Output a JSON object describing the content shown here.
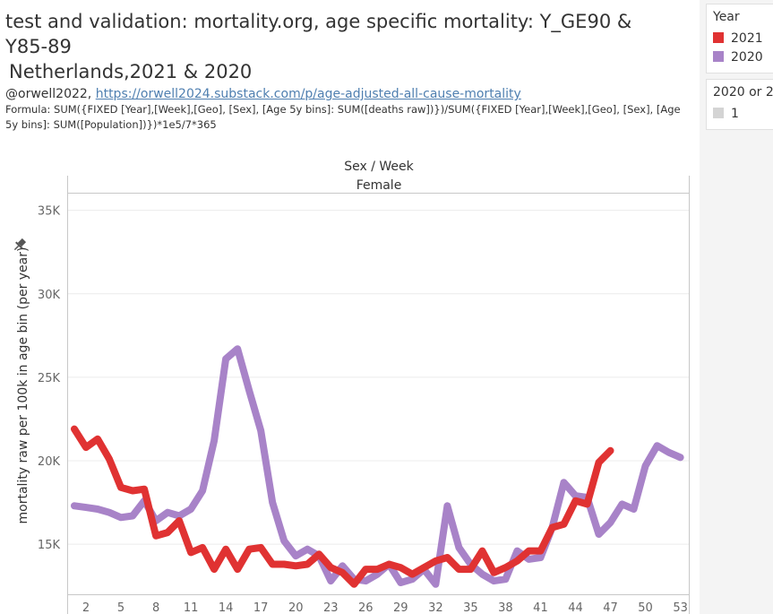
{
  "title_lines": [
    "test and validation: mortality.org, age specific mortality: Y_GE90 &",
    "Y85-89",
    " Netherlands,2021 & 2020"
  ],
  "author": "@orwell2022, ",
  "link_text": "https://orwell2024.substack.com/p/age-adjusted-all-cause-mortality",
  "formula": "Formula: SUM({FIXED [Year],[Week],[Geo], [Sex], [Age 5y bins]: SUM([deaths raw])})/SUM({FIXED [Year],[Week],[Geo], [Sex], [Age 5y bins]: SUM([Population])})*1e5/7*365",
  "legend_year": {
    "title": "Year",
    "items": [
      {
        "label": "2021",
        "color": "#e03232"
      },
      {
        "label": "2020",
        "color": "#a883c8"
      }
    ]
  },
  "legend_filter": {
    "title": "2020 or 2",
    "items": [
      {
        "label": "1",
        "color": "#d4d4d4"
      }
    ]
  },
  "pin_icon": "pin-icon",
  "chart_data": {
    "type": "line",
    "column_header": "Sex / Week",
    "panel_header": "Female",
    "ylabel": "mortality raw per 100k in age bin (per year)",
    "xlabel": "",
    "x_ticks": [
      2,
      5,
      8,
      11,
      14,
      17,
      20,
      23,
      26,
      29,
      32,
      35,
      38,
      41,
      44,
      47,
      50,
      53
    ],
    "y_ticks": [
      {
        "value": 15000,
        "label": "15K"
      },
      {
        "value": 20000,
        "label": "20K"
      },
      {
        "value": 25000,
        "label": "25K"
      },
      {
        "value": 30000,
        "label": "30K"
      },
      {
        "value": 35000,
        "label": "35K"
      }
    ],
    "xlim": [
      1,
      53.8
    ],
    "ylim": [
      12000,
      36000
    ],
    "grid": true,
    "series": [
      {
        "name": "2021",
        "color": "#e03232",
        "x": [
          1,
          2,
          3,
          4,
          5,
          6,
          7,
          8,
          9,
          10,
          11,
          12,
          13,
          14,
          15,
          16,
          17,
          18,
          19,
          20,
          21,
          22,
          23,
          24,
          25,
          26,
          27,
          28,
          29,
          30,
          31,
          32,
          33,
          34,
          35,
          36,
          37,
          38,
          39,
          40,
          41,
          42,
          43,
          44,
          45,
          46,
          47
        ],
        "y": [
          21900,
          20800,
          21300,
          20100,
          18400,
          18200,
          18300,
          15500,
          15700,
          16400,
          14500,
          14800,
          13500,
          14700,
          13500,
          14700,
          14800,
          13800,
          13800,
          13700,
          13800,
          14400,
          13600,
          13300,
          12600,
          13500,
          13500,
          13800,
          13600,
          13200,
          13600,
          14000,
          14200,
          13500,
          13500,
          14600,
          13300,
          13600,
          14000,
          14600,
          14600,
          16000,
          16200,
          17600,
          17400,
          19900,
          20600
        ]
      },
      {
        "name": "2020",
        "color": "#a883c8",
        "x": [
          1,
          2,
          3,
          4,
          5,
          6,
          7,
          8,
          9,
          10,
          11,
          12,
          13,
          14,
          15,
          16,
          17,
          18,
          19,
          20,
          21,
          22,
          23,
          24,
          25,
          26,
          27,
          28,
          29,
          30,
          31,
          32,
          33,
          34,
          35,
          36,
          37,
          38,
          39,
          40,
          41,
          42,
          43,
          44,
          45,
          46,
          47,
          48,
          49,
          50,
          51,
          52,
          53
        ],
        "y": [
          17300,
          17200,
          17100,
          16900,
          16600,
          16700,
          17600,
          16400,
          16900,
          16700,
          17100,
          18200,
          21200,
          26100,
          26700,
          24200,
          21800,
          17500,
          15200,
          14300,
          14700,
          14300,
          12800,
          13700,
          12900,
          12800,
          13200,
          13800,
          12700,
          12900,
          13500,
          12600,
          17300,
          14800,
          13800,
          13200,
          12800,
          12900,
          14600,
          14100,
          14200,
          16000,
          18700,
          17900,
          17800,
          15600,
          16300,
          17400,
          17100,
          19700,
          20900,
          20500,
          20200
        ]
      }
    ]
  }
}
